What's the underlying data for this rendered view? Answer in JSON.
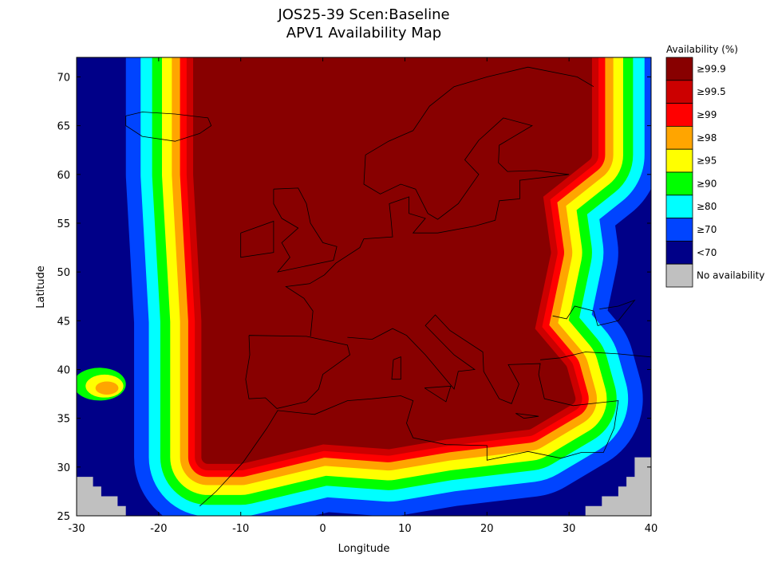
{
  "chart_data": {
    "type": "heatmap",
    "title": "JOS25-39 Scen:Baseline",
    "subtitle": "APV1 Availability Map",
    "xlabel": "Longitude",
    "ylabel": "Latitude",
    "xlim": [
      -30,
      40
    ],
    "ylim": [
      25,
      72
    ],
    "xticks": [
      -30,
      -20,
      -10,
      0,
      10,
      20,
      30,
      40
    ],
    "yticks": [
      25,
      30,
      35,
      40,
      45,
      50,
      55,
      60,
      65,
      70
    ],
    "grid": false,
    "legend": {
      "title": "Availability (%)",
      "placement": "right",
      "entries": [
        {
          "label": "≥99.9",
          "color": "#880000"
        },
        {
          "label": "≥99.5",
          "color": "#cc0000"
        },
        {
          "label": "≥99",
          "color": "#ff0000"
        },
        {
          "label": "≥98",
          "color": "#ffa500"
        },
        {
          "label": "≥95",
          "color": "#ffff00"
        },
        {
          "label": "≥90",
          "color": "#00ff00"
        },
        {
          "label": "≥80",
          "color": "#00ffff"
        },
        {
          "label": "≥70",
          "color": "#0044ff"
        },
        {
          "label": "<70",
          "color": "#000088"
        },
        {
          "label": "No availability",
          "color": "#c0c0c0"
        }
      ]
    },
    "core_region_lonlat": [
      [
        -15,
        72
      ],
      [
        32,
        72
      ],
      [
        32,
        62
      ],
      [
        26,
        58
      ],
      [
        27,
        52
      ],
      [
        25,
        44
      ],
      [
        29,
        40
      ],
      [
        30,
        37
      ],
      [
        25,
        34.5
      ],
      [
        15,
        33.5
      ],
      [
        8,
        32.5
      ],
      [
        0,
        33
      ],
      [
        -10,
        31
      ],
      [
        -14,
        31
      ],
      [
        -14,
        45
      ],
      [
        -15,
        60
      ]
    ],
    "band_offsets_deg": [
      0.8,
      1.6,
      2.4,
      3.4,
      4.6,
      5.8,
      7.2,
      9.0
    ],
    "no_availability_regions_lonlat": [
      [
        [
          -30,
          25
        ],
        [
          -30,
          29
        ],
        [
          -28,
          29
        ],
        [
          -28,
          28
        ],
        [
          -27,
          28
        ],
        [
          -27,
          27
        ],
        [
          -25,
          27
        ],
        [
          -25,
          26
        ],
        [
          -24,
          26
        ],
        [
          -24,
          25
        ]
      ],
      [
        [
          32,
          25
        ],
        [
          32,
          26
        ],
        [
          34,
          26
        ],
        [
          34,
          27
        ],
        [
          36,
          27
        ],
        [
          36,
          28
        ],
        [
          37,
          28
        ],
        [
          37,
          29
        ],
        [
          38,
          29
        ],
        [
          38,
          31
        ],
        [
          40,
          31
        ],
        [
          40,
          25
        ]
      ]
    ]
  }
}
